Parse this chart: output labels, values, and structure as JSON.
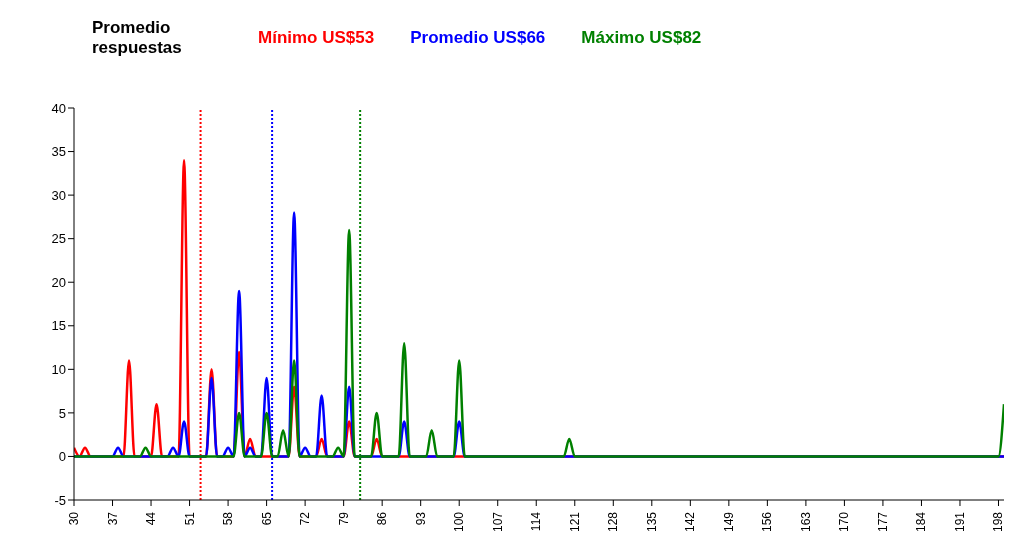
{
  "chart_data": {
    "type": "line",
    "legend_title": "Promedio respuestas",
    "legend": "top left",
    "series": [
      {
        "name": "Mínimo US$53",
        "color": "#ff0000",
        "x": [
          30,
          31,
          32,
          33,
          39,
          40,
          41,
          44,
          45,
          46,
          49,
          50,
          51,
          54,
          55,
          56,
          59,
          60,
          61,
          62,
          63,
          69,
          70,
          71,
          74,
          75,
          76,
          79,
          80,
          81,
          84,
          85,
          86,
          199
        ],
        "values": [
          1,
          0,
          1,
          0,
          0,
          11,
          0,
          0,
          6,
          0,
          0,
          34,
          0,
          0,
          10,
          0,
          0,
          12,
          0,
          2,
          0,
          0,
          8,
          0,
          0,
          2,
          0,
          0,
          4,
          0,
          0,
          2,
          0,
          0
        ]
      },
      {
        "name": "Promedio US$66",
        "color": "#0000ff",
        "x": [
          30,
          37,
          38,
          39,
          47,
          48,
          49,
          50,
          51,
          54,
          55,
          56,
          57,
          58,
          59,
          60,
          61,
          62,
          63,
          64,
          65,
          66,
          69,
          70,
          71,
          72,
          73,
          74,
          75,
          76,
          79,
          80,
          81,
          89,
          90,
          91,
          99,
          100,
          101,
          199
        ],
        "values": [
          0,
          0,
          1,
          0,
          0,
          1,
          0,
          4,
          0,
          0,
          9,
          0,
          0,
          1,
          0,
          19,
          0,
          1,
          0,
          0,
          9,
          0,
          0,
          28,
          0,
          1,
          0,
          0,
          7,
          0,
          0,
          8,
          0,
          0,
          4,
          0,
          0,
          4,
          0,
          0
        ]
      },
      {
        "name": "Máximo US$82",
        "color": "#008000",
        "x": [
          30,
          42,
          43,
          44,
          59,
          60,
          61,
          64,
          65,
          66,
          67,
          68,
          69,
          70,
          71,
          77,
          78,
          79,
          80,
          81,
          84,
          85,
          86,
          89,
          90,
          91,
          94,
          95,
          96,
          99,
          100,
          101,
          119,
          120,
          121,
          198,
          199
        ],
        "values": [
          0,
          0,
          1,
          0,
          0,
          5,
          0,
          0,
          5,
          0,
          0,
          3,
          0,
          11,
          0,
          0,
          1,
          0,
          26,
          0,
          0,
          5,
          0,
          0,
          13,
          0,
          0,
          3,
          0,
          0,
          11,
          0,
          0,
          2,
          0,
          0,
          6
        ]
      }
    ],
    "ref_lines": [
      {
        "axis": "x",
        "value": 53,
        "color": "#ff0000",
        "line_style": "dotted"
      },
      {
        "axis": "x",
        "value": 66,
        "color": "#0000ff",
        "line_style": "dotted"
      },
      {
        "axis": "x",
        "value": 82,
        "color": "#008000",
        "line_style": "dotted"
      }
    ],
    "xlim": [
      30,
      199
    ],
    "xticks": [
      30,
      37,
      44,
      51,
      58,
      65,
      72,
      79,
      86,
      93,
      100,
      107,
      114,
      121,
      128,
      135,
      142,
      149,
      156,
      163,
      170,
      177,
      184,
      191,
      198
    ],
    "ylim": [
      -5,
      40
    ],
    "yticks": [
      -5,
      0,
      5,
      10,
      15,
      20,
      25,
      30,
      35,
      40
    ],
    "grid": false,
    "line_style": "solid",
    "marker": "none"
  }
}
